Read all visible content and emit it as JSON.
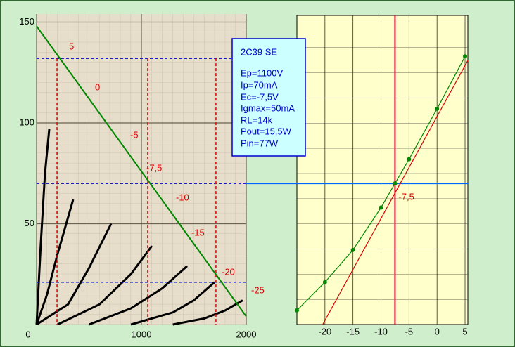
{
  "info_box": {
    "title": "2C39 SE",
    "lines": [
      "Ep=1100V",
      "Ip=70mA",
      "Ec=-7,5V",
      "Igmax=50mA",
      "RL=14k",
      "Pout=15,5W",
      "Pin=77W"
    ]
  },
  "chart_data": [
    {
      "type": "line",
      "xlim": [
        0,
        2000
      ],
      "ylim": [
        0,
        150
      ],
      "xticks": [
        0,
        1000,
        2000
      ],
      "yticks": [
        50,
        100,
        150
      ],
      "series": [
        {
          "name": "5",
          "color": "#000000",
          "x": [
            0,
            40,
            80,
            121
          ],
          "values": [
            0,
            40,
            75,
            97
          ]
        },
        {
          "name": "0",
          "color": "#000000",
          "x": [
            0,
            100,
            200,
            349
          ],
          "values": [
            0,
            15,
            35,
            62
          ]
        },
        {
          "name": "-5",
          "color": "#000000",
          "x": [
            0,
            300,
            500,
            711
          ],
          "values": [
            0,
            10,
            28,
            50
          ]
        },
        {
          "name": "-10",
          "color": "#000000",
          "x": [
            200,
            600,
            900,
            1100
          ],
          "values": [
            0,
            10,
            25,
            39
          ]
        },
        {
          "name": "-15",
          "color": "#000000",
          "x": [
            500,
            900,
            1200,
            1436
          ],
          "values": [
            0,
            8,
            18,
            29
          ]
        },
        {
          "name": "-20",
          "color": "#000000",
          "x": [
            900,
            1300,
            1500,
            1698
          ],
          "values": [
            0,
            6,
            12,
            21
          ]
        },
        {
          "name": "-25",
          "color": "#000000",
          "x": [
            1300,
            1600,
            1800,
            1966
          ],
          "values": [
            0,
            3,
            7,
            12
          ]
        }
      ],
      "load_line": {
        "color": "#008800",
        "x": [
          0,
          2000
        ],
        "values": [
          148,
          4
        ]
      },
      "hlines": [
        132,
        70,
        21
      ],
      "vlines": [
        195,
        1060,
        1711
      ],
      "operating_point_label": "-7,5"
    },
    {
      "type": "line",
      "xlim": [
        -25,
        5.5
      ],
      "ylim": [
        0,
        150
      ],
      "xticks": [
        -20,
        -15,
        -10,
        -5,
        0,
        5
      ],
      "series": [
        {
          "color": "#008800",
          "x": [
            -25,
            -20,
            -15,
            -10,
            -7.5,
            -5,
            0,
            5
          ],
          "values": [
            7,
            21,
            37,
            58,
            70,
            82,
            107,
            133
          ]
        },
        {
          "color": "#dd0000",
          "x": [
            -20.4,
            5.5
          ],
          "values": [
            0,
            131
          ]
        }
      ],
      "hline": 70,
      "vline": -7.5,
      "vline_label": "-7,5"
    }
  ]
}
